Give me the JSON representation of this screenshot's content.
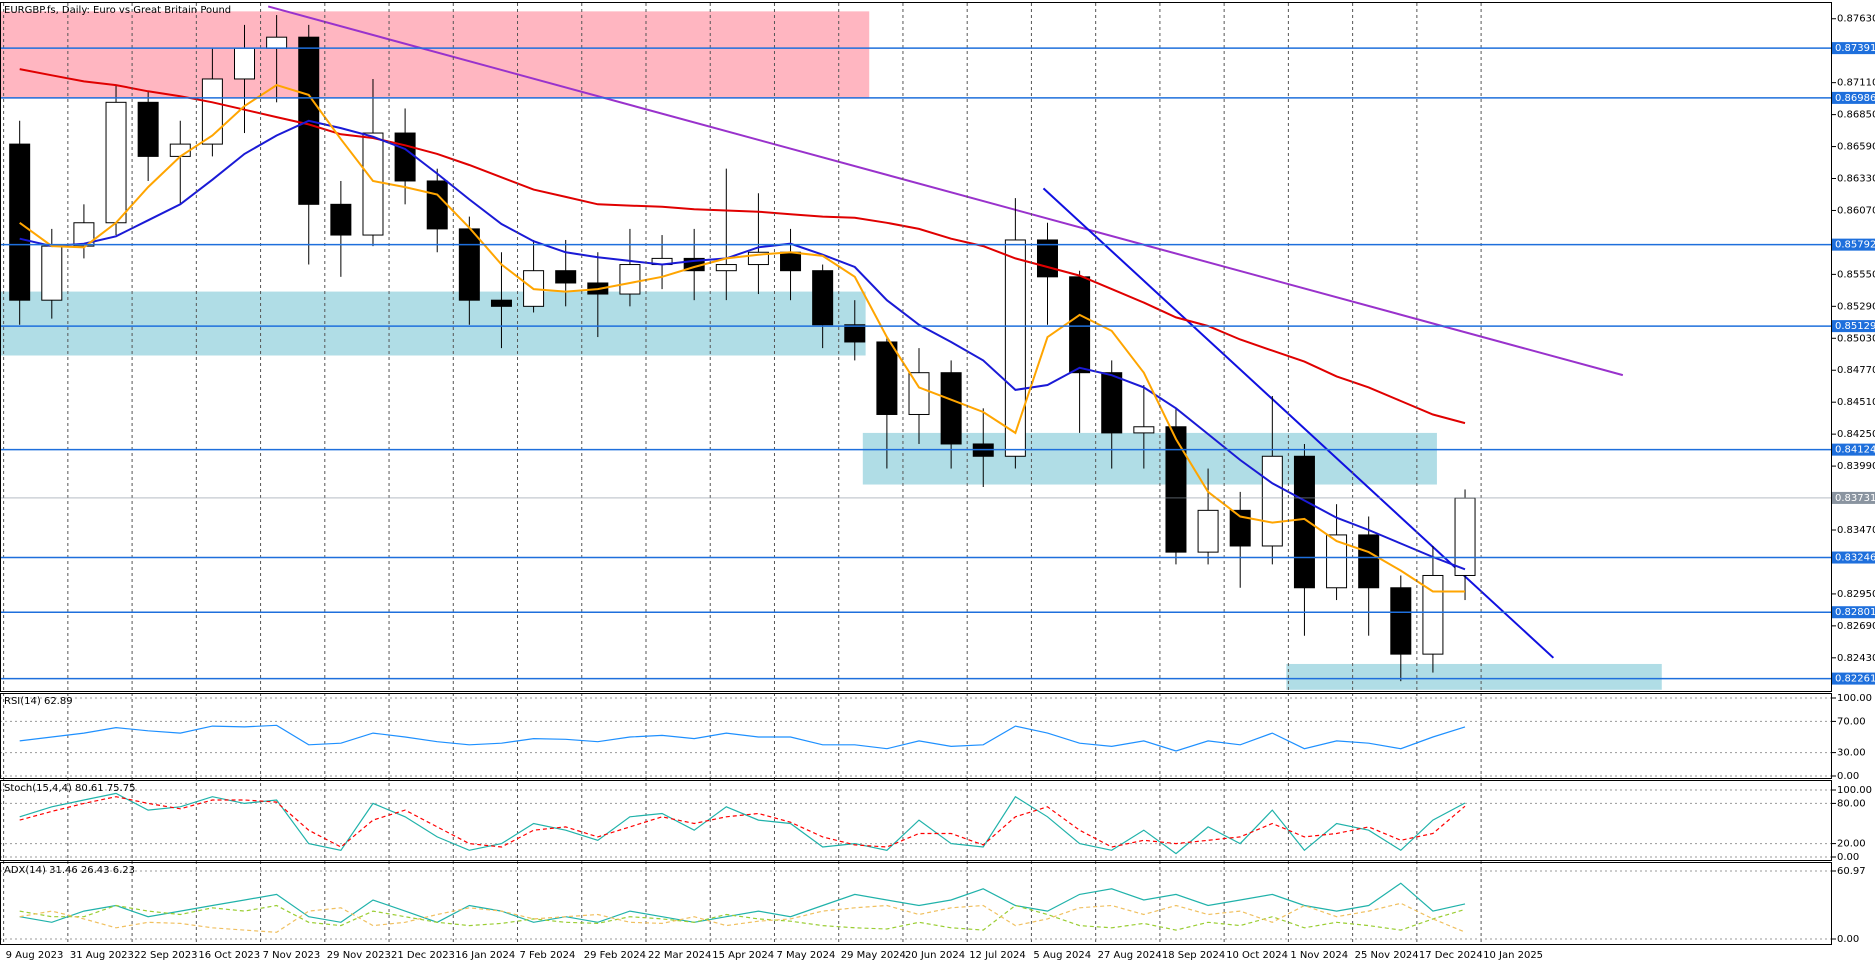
{
  "chart_data": [
    {
      "type": "candlestick",
      "title": "EURGBP.fs, Daily:  Euro vs Great Britain Pound",
      "x": [
        4,
        12,
        20,
        28,
        36,
        44,
        52,
        60,
        68,
        76,
        84,
        92,
        100,
        108,
        116,
        124,
        132,
        140,
        148,
        156,
        164,
        172,
        180,
        188,
        196,
        204,
        212,
        220,
        228,
        236,
        244,
        252,
        260,
        268,
        276,
        284,
        292,
        300,
        308,
        316,
        324,
        332,
        340,
        348,
        356,
        364
      ],
      "open": [
        0.8661,
        0.8534,
        0.8578,
        0.8597,
        0.8695,
        0.8651,
        0.8661,
        0.8714,
        0.8739,
        0.8748,
        0.8612,
        0.8587,
        0.867,
        0.8631,
        0.8592,
        0.8534,
        0.8529,
        0.8558,
        0.8548,
        0.8539,
        0.8563,
        0.8568,
        0.8558,
        0.8563,
        0.8573,
        0.8558,
        0.8514,
        0.85,
        0.8441,
        0.8475,
        0.8417,
        0.8407,
        0.8583,
        0.8553,
        0.8475,
        0.8426,
        0.8431,
        0.8329,
        0.8363,
        0.8334,
        0.8407,
        0.83,
        0.8343,
        0.83,
        0.8246,
        0.831
      ],
      "high": [
        0.868,
        0.8592,
        0.8612,
        0.8709,
        0.8704,
        0.868,
        0.8739,
        0.8758,
        0.8766,
        0.8758,
        0.8631,
        0.8714,
        0.869,
        0.8641,
        0.8602,
        0.8573,
        0.8583,
        0.8583,
        0.8573,
        0.8592,
        0.8587,
        0.8592,
        0.8641,
        0.8621,
        0.8592,
        0.8563,
        0.8534,
        0.8504,
        0.8495,
        0.8485,
        0.8446,
        0.8617,
        0.8597,
        0.8558,
        0.8485,
        0.8465,
        0.8446,
        0.8397,
        0.8378,
        0.8456,
        0.8417,
        0.8368,
        0.8358,
        0.831,
        0.8334,
        0.838
      ],
      "low": [
        0.8514,
        0.8519,
        0.8568,
        0.8587,
        0.8631,
        0.8612,
        0.8651,
        0.867,
        0.8695,
        0.8563,
        0.8553,
        0.8578,
        0.8612,
        0.8573,
        0.8514,
        0.8495,
        0.8524,
        0.8529,
        0.8504,
        0.8529,
        0.8543,
        0.8534,
        0.8534,
        0.8539,
        0.8534,
        0.8495,
        0.8485,
        0.8397,
        0.8417,
        0.8397,
        0.8382,
        0.8397,
        0.8514,
        0.8426,
        0.8397,
        0.8397,
        0.8319,
        0.8319,
        0.83,
        0.8319,
        0.8261,
        0.829,
        0.8261,
        0.8224,
        0.8231,
        0.829
      ],
      "close": [
        0.8534,
        0.8578,
        0.8597,
        0.8695,
        0.8651,
        0.8661,
        0.8714,
        0.8739,
        0.8748,
        0.8612,
        0.8587,
        0.867,
        0.8631,
        0.8592,
        0.8534,
        0.8529,
        0.8558,
        0.8548,
        0.8539,
        0.8563,
        0.8568,
        0.8558,
        0.8563,
        0.8573,
        0.8558,
        0.8514,
        0.85,
        0.8441,
        0.8475,
        0.8417,
        0.8407,
        0.8583,
        0.8553,
        0.8475,
        0.8426,
        0.8431,
        0.8329,
        0.8363,
        0.8334,
        0.8407,
        0.83,
        0.8343,
        0.83,
        0.8246,
        0.831,
        0.8373
      ],
      "series": [
        {
          "color": "#e00000",
          "values": [
            0.8722,
            0.8717,
            0.8712,
            0.8709,
            0.8704,
            0.87,
            0.8695,
            0.8689,
            0.8683,
            0.8677,
            0.8669,
            0.8666,
            0.866,
            0.8653,
            0.8644,
            0.8634,
            0.8624,
            0.8618,
            0.8612,
            0.8611,
            0.861,
            0.8608,
            0.8607,
            0.8606,
            0.8604,
            0.8602,
            0.8601,
            0.8597,
            0.8592,
            0.8584,
            0.8578,
            0.8568,
            0.8561,
            0.8554,
            0.8543,
            0.8532,
            0.852,
            0.8513,
            0.8502,
            0.8493,
            0.8484,
            0.8472,
            0.8463,
            0.8452,
            0.8441,
            0.8434
          ]
        },
        {
          "color": "#1a1ad6",
          "values": [
            0.8584,
            0.8578,
            0.858,
            0.8586,
            0.8599,
            0.8612,
            0.8632,
            0.8653,
            0.8668,
            0.868,
            0.8674,
            0.8667,
            0.8657,
            0.8637,
            0.8616,
            0.8596,
            0.8582,
            0.8573,
            0.8569,
            0.8566,
            0.8563,
            0.8566,
            0.8568,
            0.8577,
            0.858,
            0.8571,
            0.8561,
            0.8534,
            0.8514,
            0.85,
            0.8485,
            0.8461,
            0.8465,
            0.8479,
            0.8473,
            0.8463,
            0.8446,
            0.8425,
            0.8404,
            0.8385,
            0.8371,
            0.8357,
            0.8347,
            0.8336,
            0.8325,
            0.8315
          ]
        },
        {
          "color": "#ffa500",
          "values": [
            0.8597,
            0.8578,
            0.8577,
            0.8597,
            0.8626,
            0.8651,
            0.8668,
            0.8692,
            0.8709,
            0.8701,
            0.8665,
            0.8631,
            0.8626,
            0.862,
            0.8593,
            0.8563,
            0.8543,
            0.8541,
            0.8543,
            0.8548,
            0.8553,
            0.8561,
            0.8568,
            0.8571,
            0.8573,
            0.857,
            0.8553,
            0.8504,
            0.8463,
            0.8453,
            0.8443,
            0.8426,
            0.8504,
            0.8522,
            0.8509,
            0.8475,
            0.8421,
            0.8378,
            0.8358,
            0.8353,
            0.8356,
            0.8338,
            0.8329,
            0.8314,
            0.8297,
            0.8297
          ]
        }
      ],
      "zones": [
        {
          "xlim": [
            -0.9,
            215.6
          ],
          "ylim": [
            0.8698,
            0.8769
          ],
          "color": "#ffb6c1"
        },
        {
          "xlim": [
            -0.9,
            214.7
          ],
          "ylim": [
            0.8489,
            0.8541
          ],
          "color": "#b0dde6"
        },
        {
          "xlim": [
            214.0,
            357.0
          ],
          "ylim": [
            0.8384,
            0.8426
          ],
          "color": "#b0dde6"
        },
        {
          "xlim": [
            319.5,
            413.0
          ],
          "ylim": [
            0.8217,
            0.8238
          ],
          "color": "#b0dde6"
        }
      ],
      "trendlines": [
        {
          "x": [
            65.9,
            403.3
          ],
          "y": [
            0.8773,
            0.8473
          ],
          "color": "#9932cc"
        },
        {
          "x": [
            259,
            386
          ],
          "y": [
            0.8625,
            0.8243
          ],
          "color": "#1010e0"
        }
      ],
      "levels": [
        0.87391,
        0.86986,
        0.85792,
        0.85129,
        0.84124,
        0.83246,
        0.82801,
        0.82261
      ],
      "level_color": "#1e6fdc",
      "current_price": 0.83731,
      "current_color": "#8a94a0",
      "xlim": [
        -0.9,
        455.4
      ],
      "xticks": [
        {
          "value": 0,
          "label": "9 Aug 2023"
        },
        {
          "value": 16,
          "label": "31 Aug 2023"
        },
        {
          "value": 32,
          "label": "22 Sep 2023"
        },
        {
          "value": 48,
          "label": "16 Oct 2023"
        },
        {
          "value": 64,
          "label": "7 Nov 2023"
        },
        {
          "value": 80,
          "label": "29 Nov 2023"
        },
        {
          "value": 96,
          "label": "21 Dec 2023"
        },
        {
          "value": 112,
          "label": "16 Jan 2024"
        },
        {
          "value": 128,
          "label": "7 Feb 2024"
        },
        {
          "value": 144,
          "label": "29 Feb 2024"
        },
        {
          "value": 160,
          "label": "22 Mar 2024"
        },
        {
          "value": 176,
          "label": "15 Apr 2024"
        },
        {
          "value": 192,
          "label": "7 May 2024"
        },
        {
          "value": 208,
          "label": "29 May 2024"
        },
        {
          "value": 224,
          "label": "20 Jun 2024"
        },
        {
          "value": 240,
          "label": "12 Jul 2024"
        },
        {
          "value": 256,
          "label": "5 Aug 2024"
        },
        {
          "value": 272,
          "label": "27 Aug 2024"
        },
        {
          "value": 288,
          "label": "18 Sep 2024"
        },
        {
          "value": 304,
          "label": "10 Oct 2024"
        },
        {
          "value": 320,
          "label": "1 Nov 2024"
        },
        {
          "value": 336,
          "label": "25 Nov 2024"
        },
        {
          "value": 352,
          "label": "17 Dec 2024"
        },
        {
          "value": 368,
          "label": "10 Jan 2025"
        }
      ],
      "ylim": [
        0.8216,
        0.8775
      ],
      "yticks": [
        {
          "value": 0.8763,
          "label": "0.87630"
        },
        {
          "value": 0.8711,
          "label": "0.87110"
        },
        {
          "value": 0.8685,
          "label": "0.86850"
        },
        {
          "value": 0.8659,
          "label": "0.86590"
        },
        {
          "value": 0.8633,
          "label": "0.86330"
        },
        {
          "value": 0.8607,
          "label": "0.86070"
        },
        {
          "value": 0.8555,
          "label": "0.85550"
        },
        {
          "value": 0.8529,
          "label": "0.85290"
        },
        {
          "value": 0.8503,
          "label": "0.85030"
        },
        {
          "value": 0.8477,
          "label": "0.84770"
        },
        {
          "value": 0.8451,
          "label": "0.84510"
        },
        {
          "value": 0.8425,
          "label": "0.84250"
        },
        {
          "value": 0.8399,
          "label": "0.83990"
        },
        {
          "value": 0.8347,
          "label": "0.83470"
        },
        {
          "value": 0.8295,
          "label": "0.82950"
        },
        {
          "value": 0.8269,
          "label": "0.82690"
        },
        {
          "value": 0.8243,
          "label": "0.82430"
        }
      ]
    },
    {
      "type": "line",
      "title": "RSI(14) 62.89",
      "x": [
        4,
        12,
        20,
        28,
        36,
        44,
        52,
        60,
        68,
        76,
        84,
        92,
        100,
        108,
        116,
        124,
        132,
        140,
        148,
        156,
        164,
        172,
        180,
        188,
        196,
        204,
        212,
        220,
        228,
        236,
        244,
        252,
        260,
        268,
        276,
        284,
        292,
        300,
        308,
        316,
        324,
        332,
        340,
        348,
        356,
        364
      ],
      "series": [
        {
          "color": "#1e90ff",
          "values": [
            45,
            50,
            55,
            62,
            58,
            55,
            64,
            63,
            65,
            40,
            42,
            55,
            50,
            44,
            40,
            42,
            48,
            47,
            44,
            50,
            52,
            48,
            55,
            50,
            50,
            40,
            40,
            35,
            45,
            38,
            40,
            64,
            55,
            42,
            38,
            45,
            32,
            45,
            40,
            55,
            35,
            45,
            42,
            35,
            50,
            62.89
          ]
        }
      ],
      "ylim": [
        0,
        100
      ],
      "yticks": [
        {
          "value": 100,
          "label": "100.00"
        },
        {
          "value": 70,
          "label": "70.00"
        },
        {
          "value": 30,
          "label": "30.00"
        },
        {
          "value": 0,
          "label": "0.00"
        }
      ]
    },
    {
      "type": "line",
      "title": "Stoch(15,4,4) 80.61 75.75",
      "x": [
        4,
        12,
        20,
        28,
        36,
        44,
        52,
        60,
        68,
        76,
        84,
        92,
        100,
        108,
        116,
        124,
        132,
        140,
        148,
        156,
        164,
        172,
        180,
        188,
        196,
        204,
        212,
        220,
        228,
        236,
        244,
        252,
        260,
        268,
        276,
        284,
        292,
        300,
        308,
        316,
        324,
        332,
        340,
        348,
        356,
        364
      ],
      "series": [
        {
          "color": "#20b2aa",
          "values": [
            60,
            75,
            85,
            95,
            70,
            75,
            90,
            80,
            85,
            20,
            10,
            80,
            60,
            30,
            10,
            20,
            50,
            40,
            25,
            60,
            65,
            40,
            75,
            55,
            50,
            15,
            20,
            10,
            55,
            20,
            15,
            90,
            60,
            20,
            10,
            40,
            5,
            45,
            20,
            70,
            10,
            50,
            40,
            10,
            55,
            80.61
          ]
        },
        {
          "color": "#ff0000",
          "dash": true,
          "values": [
            55,
            68,
            80,
            90,
            80,
            72,
            85,
            85,
            82,
            40,
            15,
            55,
            70,
            45,
            20,
            15,
            40,
            45,
            30,
            45,
            60,
            50,
            60,
            65,
            52,
            30,
            18,
            15,
            35,
            35,
            18,
            60,
            75,
            40,
            15,
            25,
            20,
            25,
            30,
            50,
            30,
            35,
            45,
            25,
            35,
            75.75
          ]
        }
      ],
      "ylim": [
        0,
        100
      ],
      "yticks": [
        {
          "value": 100,
          "label": "100.00"
        },
        {
          "value": 80,
          "label": "80.00"
        },
        {
          "value": 20,
          "label": "20.00"
        },
        {
          "value": 0,
          "label": "0.00"
        }
      ]
    },
    {
      "type": "line",
      "title": "ADX(14) 31.46 26.43 6.23",
      "x": [
        4,
        12,
        20,
        28,
        36,
        44,
        52,
        60,
        68,
        76,
        84,
        92,
        100,
        108,
        116,
        124,
        132,
        140,
        148,
        156,
        164,
        172,
        180,
        188,
        196,
        204,
        212,
        220,
        228,
        236,
        244,
        252,
        260,
        268,
        276,
        284,
        292,
        300,
        308,
        316,
        324,
        332,
        340,
        348,
        356,
        364
      ],
      "series": [
        {
          "color": "#20b2aa",
          "values": [
            20,
            15,
            25,
            30,
            20,
            25,
            30,
            35,
            40,
            20,
            15,
            35,
            25,
            15,
            30,
            25,
            15,
            20,
            15,
            25,
            20,
            15,
            20,
            25,
            20,
            30,
            40,
            35,
            30,
            35,
            45,
            30,
            25,
            40,
            45,
            35,
            40,
            30,
            35,
            40,
            30,
            25,
            30,
            50,
            25,
            31.46
          ]
        },
        {
          "color": "#9acd32",
          "dash": true,
          "values": [
            25,
            20,
            20,
            30,
            25,
            22,
            28,
            25,
            30,
            15,
            12,
            25,
            20,
            15,
            12,
            14,
            18,
            15,
            14,
            20,
            18,
            15,
            22,
            18,
            16,
            12,
            10,
            9,
            15,
            10,
            8,
            30,
            22,
            12,
            10,
            14,
            8,
            15,
            12,
            20,
            10,
            15,
            12,
            8,
            18,
            26.43
          ]
        },
        {
          "color": "#f0c060",
          "dash": true,
          "values": [
            20,
            25,
            18,
            10,
            15,
            14,
            10,
            8,
            6,
            25,
            28,
            12,
            15,
            22,
            28,
            25,
            18,
            20,
            22,
            15,
            14,
            20,
            12,
            16,
            18,
            25,
            28,
            30,
            22,
            28,
            30,
            12,
            18,
            28,
            30,
            22,
            30,
            22,
            25,
            15,
            30,
            20,
            25,
            32,
            18,
            6.23
          ]
        }
      ],
      "ylim": [
        0,
        60.97
      ],
      "yticks": [
        60.97,
        {
          "value": 0,
          "label": "0.00"
        }
      ]
    }
  ]
}
